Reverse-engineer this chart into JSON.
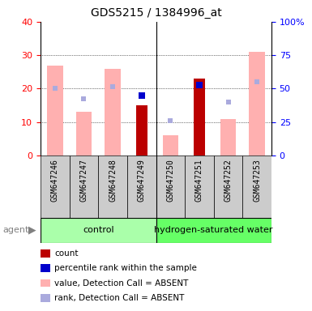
{
  "title": "GDS5215 / 1384996_at",
  "samples": [
    "GSM647246",
    "GSM647247",
    "GSM647248",
    "GSM647249",
    "GSM647250",
    "GSM647251",
    "GSM647252",
    "GSM647253"
  ],
  "count_values": [
    null,
    null,
    null,
    15,
    null,
    23,
    null,
    null
  ],
  "count_rank_values": [
    null,
    null,
    null,
    18,
    null,
    21,
    null,
    null
  ],
  "absent_value_values": [
    27,
    13,
    26,
    null,
    6,
    null,
    11,
    31
  ],
  "absent_rank_values": [
    20,
    17,
    20.5,
    null,
    10.5,
    null,
    16,
    22
  ],
  "yticks_left": [
    0,
    10,
    20,
    30,
    40
  ],
  "ytick_labels_left": [
    "0",
    "10",
    "20",
    "30",
    "40"
  ],
  "ytick_labels_right": [
    "0",
    "25",
    "50",
    "75",
    "100%"
  ],
  "count_color": "#bb0000",
  "rank_color": "#0000cc",
  "absent_value_color": "#ffb0b0",
  "absent_rank_color": "#aaaadd",
  "control_color": "#aaffaa",
  "treatment_color": "#66ff66",
  "group_label_control": "control",
  "group_label_treatment": "hydrogen-saturated water",
  "legend_items": [
    {
      "label": "count",
      "color": "#bb0000"
    },
    {
      "label": "percentile rank within the sample",
      "color": "#0000cc"
    },
    {
      "label": "value, Detection Call = ABSENT",
      "color": "#ffb0b0"
    },
    {
      "label": "rank, Detection Call = ABSENT",
      "color": "#aaaadd"
    }
  ],
  "agent_label": "agent",
  "sample_label_bg": "#cccccc",
  "control_count": 4,
  "treatment_count": 4
}
